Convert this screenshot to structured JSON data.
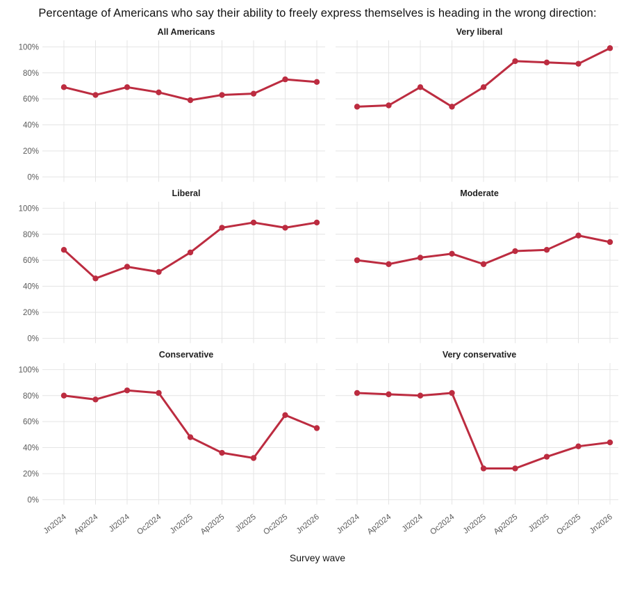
{
  "header": {
    "title": "Percentage of Americans who say their ability to freely express themselves is heading in the wrong direction:"
  },
  "chart_data": {
    "type": "line",
    "layout": "facet-grid 2 columns x 3 rows, shared axes",
    "title": "Percentage of Americans who say their ability to freely express themselves is heading in the wrong direction:",
    "xlabel": "Survey wave",
    "ylabel": "",
    "x": [
      "Jn2024",
      "Ap2024",
      "Jl2024",
      "Oc2024",
      "Jn2025",
      "Ap2025",
      "Jl2025",
      "Oc2025",
      "Jn2026"
    ],
    "ylim": [
      0,
      100
    ],
    "y_ticks": [
      "0%",
      "20%",
      "40%",
      "60%",
      "80%",
      "100%"
    ],
    "grid": true,
    "legend": "none",
    "panels": [
      {
        "title": "All Americans",
        "values": [
          69,
          63,
          69,
          65,
          59,
          63,
          64,
          75,
          73
        ]
      },
      {
        "title": "Very liberal",
        "values": [
          54,
          55,
          69,
          54,
          69,
          89,
          88,
          87,
          99
        ]
      },
      {
        "title": "Liberal",
        "values": [
          68,
          46,
          55,
          51,
          66,
          85,
          89,
          85,
          89
        ]
      },
      {
        "title": "Moderate",
        "values": [
          60,
          57,
          62,
          65,
          57,
          67,
          68,
          79,
          74
        ]
      },
      {
        "title": "Conservative",
        "values": [
          80,
          77,
          84,
          82,
          48,
          36,
          32,
          65,
          55
        ]
      },
      {
        "title": "Very conservative",
        "values": [
          82,
          81,
          80,
          82,
          24,
          24,
          33,
          41,
          44
        ]
      }
    ],
    "colors": {
      "line": "#bc2c40",
      "grid": "#e4e4e4",
      "tick_label": "#5a5a5a",
      "title": "#121212"
    }
  }
}
